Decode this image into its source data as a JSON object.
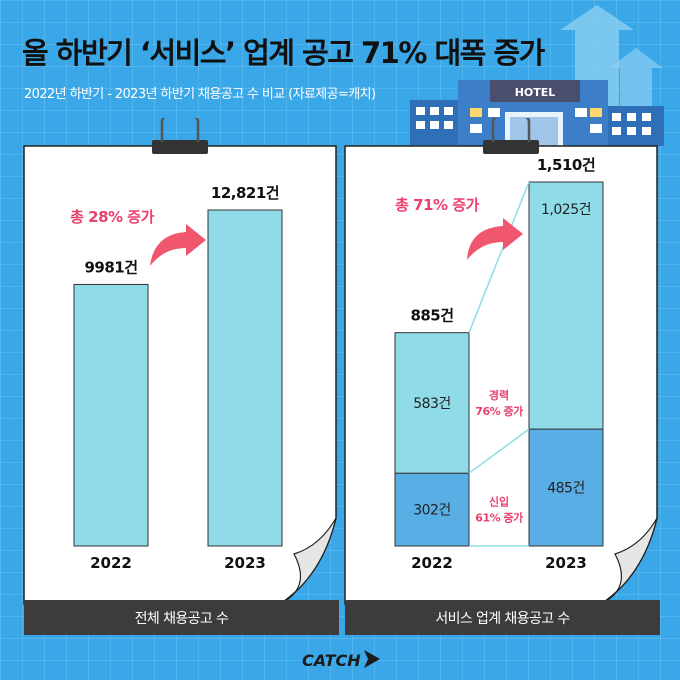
{
  "header": {
    "title": "올 하반기 ‘서비스’ 업계 공고 71% 대폭 증가",
    "subtitle": "2022년 하반기 - 2023년 하반기 채용공고 수 비교 (자료제공=캐치)"
  },
  "deco": {
    "hotel_sign": "HOTEL"
  },
  "logo": {
    "text": "CATCH"
  },
  "colors": {
    "background": "#3aa8e8",
    "total_bar": "#8fdbe8",
    "experienced_bar": "#8fdbe8",
    "newcomer_bar": "#5aaee6",
    "highlight": "#ec3f6b",
    "arrow": "#f0576e",
    "caption_bg": "#3c3c3c"
  },
  "chart_data": [
    {
      "type": "bar",
      "categories": [
        "2022",
        "2023"
      ],
      "values": [
        9981,
        12821
      ],
      "value_labels": [
        "9981건",
        "12,821건"
      ],
      "annotation": "총 28% 증가",
      "caption": "전체 채용공고 수"
    },
    {
      "type": "bar",
      "stacked": true,
      "categories": [
        "2022",
        "2023"
      ],
      "series": [
        {
          "name": "신입",
          "values": [
            302,
            485
          ],
          "labels": [
            "302건",
            "485건"
          ]
        },
        {
          "name": "경력",
          "values": [
            583,
            1025
          ],
          "labels": [
            "583건",
            "1,025건"
          ]
        }
      ],
      "totals": [
        885,
        1510
      ],
      "total_labels": [
        "885건",
        "1,510건"
      ],
      "annotation": "총 71% 증가",
      "growth_labels": [
        {
          "line1": "경력",
          "line2": "76% 증가"
        },
        {
          "line1": "신입",
          "line2": "61% 증가"
        }
      ],
      "caption": "서비스 업계 채용공고 수"
    }
  ]
}
